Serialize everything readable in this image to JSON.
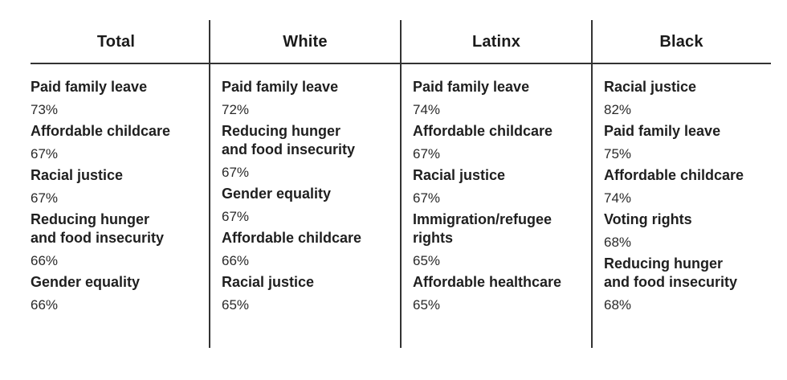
{
  "columns": [
    {
      "header": "Total",
      "items": [
        {
          "label": "Paid family leave",
          "value": "73%"
        },
        {
          "label": "Affordable childcare",
          "value": "67%"
        },
        {
          "label": "Racial justice",
          "value": "67%"
        },
        {
          "label": "Reducing hunger\nand food insecurity",
          "value": "66%"
        },
        {
          "label": "Gender equality",
          "value": "66%"
        }
      ]
    },
    {
      "header": "White",
      "items": [
        {
          "label": "Paid family leave",
          "value": "72%"
        },
        {
          "label": "Reducing hunger\nand food insecurity",
          "value": "67%"
        },
        {
          "label": "Gender equality",
          "value": "67%"
        },
        {
          "label": "Affordable childcare",
          "value": "66%"
        },
        {
          "label": "Racial justice",
          "value": "65%"
        }
      ]
    },
    {
      "header": "Latinx",
      "items": [
        {
          "label": "Paid family leave",
          "value": "74%"
        },
        {
          "label": "Affordable childcare",
          "value": "67%"
        },
        {
          "label": "Racial justice",
          "value": "67%"
        },
        {
          "label": "Immigration/refugee\nrights",
          "value": "65%"
        },
        {
          "label": "Affordable healthcare",
          "value": "65%"
        }
      ]
    },
    {
      "header": "Black",
      "items": [
        {
          "label": "Racial justice",
          "value": "82%"
        },
        {
          "label": "Paid family leave",
          "value": "75%"
        },
        {
          "label": "Affordable childcare",
          "value": "74%"
        },
        {
          "label": "Voting rights",
          "value": "68%"
        },
        {
          "label": "Reducing hunger\nand food insecurity",
          "value": "68%"
        }
      ]
    }
  ]
}
